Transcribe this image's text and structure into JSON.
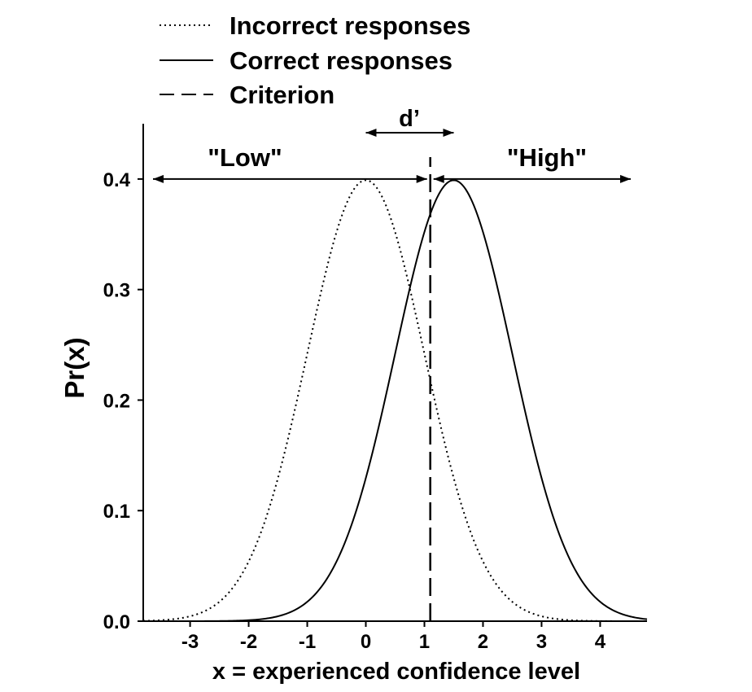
{
  "chart_data": {
    "type": "line",
    "title": "",
    "xlabel": "x = experienced confidence level",
    "ylabel": "Pr(x)",
    "xlim": [
      -3.8,
      4.8
    ],
    "ylim": [
      0,
      0.45
    ],
    "x_ticks": [
      -3,
      -2,
      -1,
      0,
      1,
      2,
      3,
      4
    ],
    "x_tick_labels": [
      "-3",
      "-2",
      "-1",
      "0",
      "1",
      "2",
      "3",
      "4"
    ],
    "y_ticks": [
      0,
      0.1,
      0.2,
      0.3,
      0.4
    ],
    "y_tick_labels": [
      "0.0",
      "0.1",
      "0.2",
      "0.3",
      "0.4"
    ],
    "grid": false,
    "legend_position": "top-left, above plot",
    "series": [
      {
        "name": "Incorrect responses",
        "style": "dotted",
        "distribution": "normal",
        "mean": 0,
        "sd": 1
      },
      {
        "name": "Correct responses",
        "style": "solid",
        "distribution": "normal",
        "mean": 1.5,
        "sd": 1
      }
    ],
    "criterion": {
      "name": "Criterion",
      "style": "dashed",
      "x": 1.1
    },
    "annotations": {
      "low_label": "\"Low\"",
      "high_label": "\"High\"",
      "dprime_label": "d’",
      "arrow_y": 0.4
    }
  },
  "colors": {
    "ink": "#000000",
    "background": "#ffffff"
  }
}
